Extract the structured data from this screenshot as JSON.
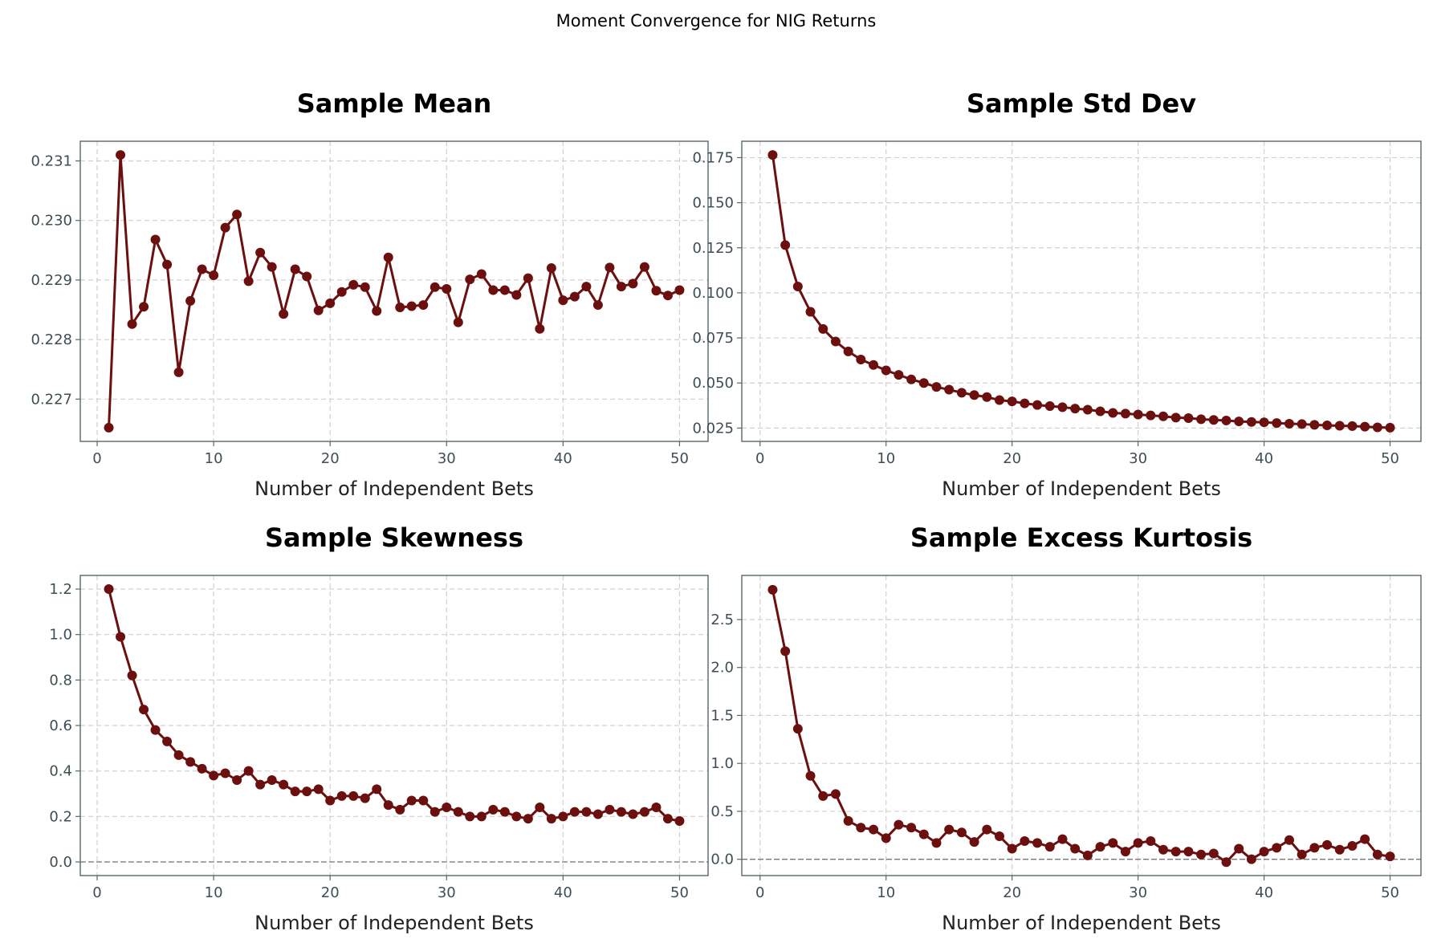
{
  "suptitle": "Moment Convergence for NIG Returns",
  "colors": {
    "line": "#6b0f0f",
    "spine": "#56666b",
    "tick_text": "#3d4f55",
    "grid": "#d0d0d0",
    "zero_line": "#777777"
  },
  "chart_data": [
    {
      "type": "line",
      "title": "Sample Mean",
      "xlabel": "Number of Independent Bets",
      "ylabel": "",
      "xlim": [
        -1.45,
        52.45
      ],
      "ylim": [
        0.22629,
        0.23133
      ],
      "xticks": [
        0,
        10,
        20,
        30,
        40,
        50
      ],
      "yticks": [
        0.227,
        0.228,
        0.229,
        0.23,
        0.231
      ],
      "ytick_labels": [
        "0.227",
        "0.228",
        "0.229",
        "0.230",
        "0.231"
      ],
      "grid": true,
      "zero_line": false,
      "values": [
        0.22652,
        0.2311,
        0.22826,
        0.22855,
        0.22968,
        0.22926,
        0.22745,
        0.22865,
        0.22918,
        0.22908,
        0.22988,
        0.2301,
        0.22898,
        0.22946,
        0.22922,
        0.22843,
        0.22918,
        0.22906,
        0.22849,
        0.22861,
        0.2288,
        0.22892,
        0.22888,
        0.22848,
        0.22938,
        0.22854,
        0.22856,
        0.22858,
        0.22888,
        0.22885,
        0.22829,
        0.22901,
        0.2291,
        0.22883,
        0.22883,
        0.22875,
        0.22903,
        0.22818,
        0.2292,
        0.22866,
        0.22872,
        0.22889,
        0.22858,
        0.22921,
        0.22889,
        0.22894,
        0.22922,
        0.22882,
        0.22874,
        0.22883
      ]
    },
    {
      "type": "line",
      "title": "Sample Std Dev",
      "xlabel": "Number of Independent Bets",
      "ylabel": "",
      "xlim": [
        -1.45,
        52.45
      ],
      "ylim": [
        0.0176,
        0.1841
      ],
      "xticks": [
        0,
        10,
        20,
        30,
        40,
        50
      ],
      "yticks": [
        0.025,
        0.05,
        0.075,
        0.1,
        0.125,
        0.15,
        0.175
      ],
      "ytick_labels": [
        "0.025",
        "0.050",
        "0.075",
        "0.100",
        "0.125",
        "0.150",
        "0.175"
      ],
      "grid": true,
      "zero_line": false,
      "values": [
        0.1765,
        0.1265,
        0.1035,
        0.0895,
        0.08,
        0.073,
        0.0675,
        0.063,
        0.06,
        0.057,
        0.0545,
        0.052,
        0.05,
        0.0478,
        0.0463,
        0.0446,
        0.0433,
        0.0422,
        0.0405,
        0.0398,
        0.0387,
        0.0378,
        0.0372,
        0.0366,
        0.0358,
        0.0352,
        0.0343,
        0.0334,
        0.033,
        0.0325,
        0.032,
        0.0315,
        0.0308,
        0.0305,
        0.0299,
        0.0295,
        0.0292,
        0.0287,
        0.0284,
        0.0282,
        0.0278,
        0.0274,
        0.0272,
        0.0268,
        0.0265,
        0.0263,
        0.0261,
        0.0258,
        0.0254,
        0.0252
      ]
    },
    {
      "type": "line",
      "title": "Sample Skewness",
      "xlabel": "Number of Independent Bets",
      "ylabel": "",
      "xlim": [
        -1.45,
        52.45
      ],
      "ylim": [
        -0.06,
        1.26
      ],
      "xticks": [
        0,
        10,
        20,
        30,
        40,
        50
      ],
      "yticks": [
        0.0,
        0.2,
        0.4,
        0.6,
        0.8,
        1.0,
        1.2
      ],
      "ytick_labels": [
        "0.0",
        "0.2",
        "0.4",
        "0.6",
        "0.8",
        "1.0",
        "1.2"
      ],
      "grid": true,
      "zero_line": true,
      "values": [
        1.2,
        0.99,
        0.82,
        0.67,
        0.58,
        0.53,
        0.47,
        0.44,
        0.41,
        0.38,
        0.39,
        0.36,
        0.4,
        0.34,
        0.36,
        0.34,
        0.31,
        0.31,
        0.32,
        0.27,
        0.29,
        0.29,
        0.28,
        0.32,
        0.25,
        0.23,
        0.27,
        0.27,
        0.22,
        0.24,
        0.22,
        0.2,
        0.2,
        0.23,
        0.22,
        0.2,
        0.19,
        0.24,
        0.19,
        0.2,
        0.22,
        0.22,
        0.21,
        0.23,
        0.22,
        0.21,
        0.22,
        0.24,
        0.19,
        0.18
      ]
    },
    {
      "type": "line",
      "title": "Sample Excess Kurtosis",
      "xlabel": "Number of Independent Bets",
      "ylabel": "",
      "xlim": [
        -1.45,
        52.45
      ],
      "ylim": [
        -0.17,
        2.96
      ],
      "xticks": [
        0,
        10,
        20,
        30,
        40,
        50
      ],
      "yticks": [
        0.0,
        0.5,
        1.0,
        1.5,
        2.0,
        2.5
      ],
      "ytick_labels": [
        "0.0",
        "0.5",
        "1.0",
        "1.5",
        "2.0",
        "2.5"
      ],
      "grid": true,
      "zero_line": true,
      "values": [
        2.81,
        2.17,
        1.36,
        0.87,
        0.66,
        0.68,
        0.4,
        0.33,
        0.31,
        0.22,
        0.36,
        0.33,
        0.26,
        0.17,
        0.31,
        0.28,
        0.18,
        0.31,
        0.24,
        0.11,
        0.19,
        0.17,
        0.13,
        0.21,
        0.11,
        0.04,
        0.13,
        0.17,
        0.08,
        0.17,
        0.19,
        0.1,
        0.08,
        0.08,
        0.05,
        0.06,
        -0.03,
        0.11,
        0.0,
        0.08,
        0.12,
        0.2,
        0.05,
        0.12,
        0.15,
        0.1,
        0.14,
        0.21,
        0.05,
        0.03
      ]
    }
  ]
}
